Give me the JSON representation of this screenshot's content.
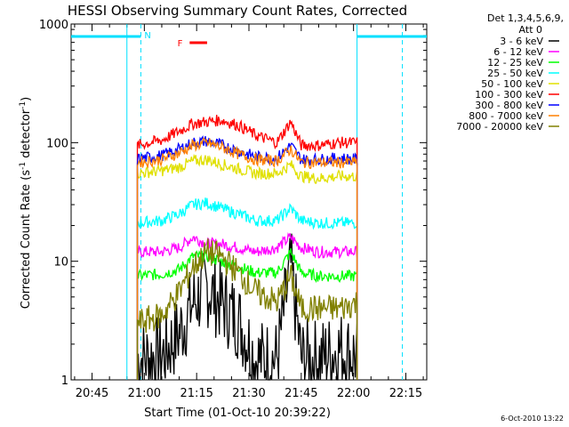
{
  "chart_data": {
    "type": "line",
    "title": "HESSI Observing Summary Count Rates, Corrected",
    "xlabel": "Start Time (01-Oct-10 20:39:22)",
    "ylabel": "Corrected Count Rate (s",
    "ylabel_sup1": "-1",
    "ylabel_mid": " detector",
    "ylabel_sup2": "-1",
    "ylabel_end": ")",
    "x_unit": "minutes",
    "xlim": [
      "20:39",
      "22:21"
    ],
    "x_ticks": [
      "20:45",
      "21:00",
      "21:15",
      "21:30",
      "21:45",
      "22:00",
      "22:15"
    ],
    "ylim": [
      1,
      1000
    ],
    "y_scale": "log",
    "y_ticks": [
      "1",
      "10",
      "100",
      "1000"
    ],
    "legend_header": [
      "Det 1,3,4,5,6,9,",
      "Att 0"
    ],
    "legend_placement": "right",
    "timestamp": "6-Oct-2010 13:22",
    "annotations": [
      {
        "label": "N",
        "color": "#00e0ff",
        "note": "night"
      },
      {
        "label": "F",
        "color": "#ff0000",
        "note": "flare flag"
      }
    ],
    "series": [
      {
        "name": "3 - 6 keV",
        "color": "#000000",
        "x": [
          "20:58",
          "21:05",
          "21:10",
          "21:14",
          "21:18",
          "21:22",
          "21:27",
          "21:32",
          "21:38",
          "21:42",
          "21:45",
          "21:50",
          "21:56",
          "22:01"
        ],
        "y": [
          1.5,
          1.6,
          2.5,
          4.5,
          6,
          4.5,
          3.2,
          1.5,
          1.5,
          9,
          1.5,
          1.5,
          1.8,
          1.6
        ]
      },
      {
        "name": "6 - 12 keV",
        "color": "#ff00ff",
        "x": [
          "20:58",
          "21:05",
          "21:10",
          "21:14",
          "21:18",
          "21:22",
          "21:27",
          "21:32",
          "21:38",
          "21:42",
          "21:45",
          "21:50",
          "21:56",
          "22:01"
        ],
        "y": [
          12,
          12,
          13,
          16,
          14,
          14,
          13,
          12,
          13,
          16,
          13,
          12,
          12,
          12
        ]
      },
      {
        "name": "12 - 25 keV",
        "color": "#00ff00",
        "x": [
          "20:58",
          "21:05",
          "21:10",
          "21:14",
          "21:18",
          "21:22",
          "21:27",
          "21:32",
          "21:38",
          "21:42",
          "21:45",
          "21:50",
          "21:56",
          "22:01"
        ],
        "y": [
          7.5,
          7.8,
          8.5,
          11,
          11,
          10,
          9,
          8,
          8,
          12,
          8,
          7.5,
          7.5,
          7.5
        ]
      },
      {
        "name": "25 - 50 keV",
        "color": "#00ffff",
        "x": [
          "20:58",
          "21:05",
          "21:10",
          "21:14",
          "21:18",
          "21:22",
          "21:27",
          "21:32",
          "21:38",
          "21:42",
          "21:45",
          "21:50",
          "21:56",
          "22:01"
        ],
        "y": [
          21,
          22,
          25,
          30,
          31,
          28,
          25,
          22,
          22,
          28,
          22,
          21,
          21,
          21
        ]
      },
      {
        "name": "50 - 100 keV",
        "color": "#e0e000",
        "x": [
          "20:58",
          "21:05",
          "21:10",
          "21:14",
          "21:18",
          "21:22",
          "21:27",
          "21:32",
          "21:38",
          "21:42",
          "21:45",
          "21:50",
          "21:56",
          "22:01"
        ],
        "y": [
          55,
          58,
          62,
          70,
          72,
          66,
          60,
          55,
          55,
          65,
          52,
          50,
          52,
          52
        ]
      },
      {
        "name": "100 - 300 keV",
        "color": "#ff0000",
        "x": [
          "20:58",
          "21:05",
          "21:10",
          "21:14",
          "21:18",
          "21:22",
          "21:27",
          "21:32",
          "21:38",
          "21:42",
          "21:45",
          "21:50",
          "21:56",
          "22:01"
        ],
        "y": [
          95,
          105,
          125,
          145,
          150,
          155,
          140,
          115,
          100,
          150,
          95,
          95,
          100,
          100
        ]
      },
      {
        "name": "300 - 800 keV",
        "color": "#0000ff",
        "x": [
          "20:58",
          "21:05",
          "21:10",
          "21:14",
          "21:18",
          "21:22",
          "21:27",
          "21:32",
          "21:38",
          "21:42",
          "21:45",
          "21:50",
          "21:56",
          "22:01"
        ],
        "y": [
          73,
          78,
          88,
          100,
          103,
          96,
          85,
          76,
          74,
          95,
          72,
          72,
          74,
          72
        ]
      },
      {
        "name": "800 - 7000 keV",
        "color": "#ff8000",
        "x": [
          "20:58",
          "21:05",
          "21:10",
          "21:14",
          "21:18",
          "21:22",
          "21:27",
          "21:32",
          "21:38",
          "21:42",
          "21:45",
          "21:50",
          "21:56",
          "22:01"
        ],
        "y": [
          68,
          72,
          82,
          95,
          99,
          92,
          80,
          72,
          70,
          88,
          68,
          68,
          68,
          68
        ]
      },
      {
        "name": "7000 - 20000 keV",
        "color": "#808000",
        "x": [
          "20:58",
          "21:05",
          "21:10",
          "21:14",
          "21:18",
          "21:22",
          "21:27",
          "21:32",
          "21:38",
          "21:42",
          "21:45",
          "21:50",
          "21:56",
          "22:01"
        ],
        "y": [
          3,
          3.5,
          5.5,
          9,
          12,
          11,
          8,
          5.5,
          4.5,
          7.5,
          4,
          4,
          4,
          4.5
        ]
      }
    ]
  }
}
